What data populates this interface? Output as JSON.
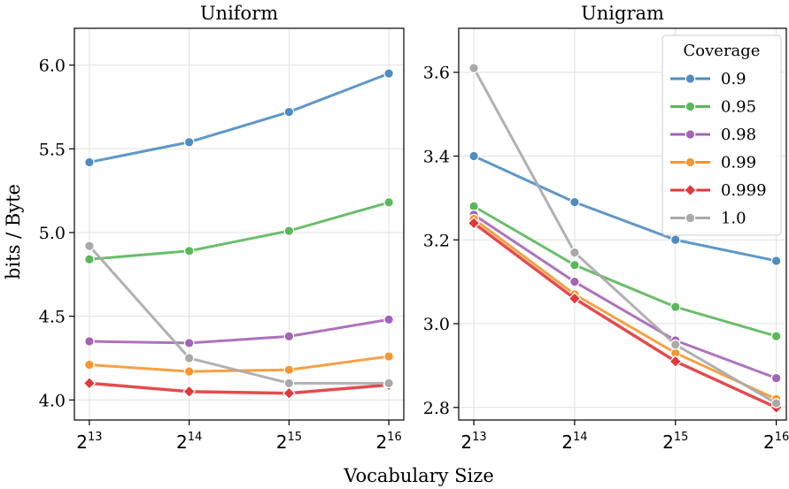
{
  "chart_data": [
    {
      "type": "line",
      "title": "Uniform",
      "xlabel": "Vocabulary Size",
      "ylabel": "bits / Byte",
      "x_log2": [
        13,
        14,
        15,
        16
      ],
      "x_tick_labels": [
        {
          "base": "2",
          "exp": "13"
        },
        {
          "base": "2",
          "exp": "14"
        },
        {
          "base": "2",
          "exp": "15"
        },
        {
          "base": "2",
          "exp": "16"
        }
      ],
      "ylim": [
        3.88,
        6.22
      ],
      "yticks": [
        "4.0",
        "4.5",
        "5.0",
        "5.5",
        "6.0"
      ],
      "series": [
        {
          "name": "0.9",
          "values": [
            5.42,
            5.54,
            5.72,
            5.95
          ]
        },
        {
          "name": "0.95",
          "values": [
            4.84,
            4.89,
            5.01,
            5.18
          ]
        },
        {
          "name": "0.98",
          "values": [
            4.35,
            4.34,
            4.38,
            4.48
          ]
        },
        {
          "name": "0.99",
          "values": [
            4.21,
            4.17,
            4.18,
            4.26
          ]
        },
        {
          "name": "0.999",
          "values": [
            4.1,
            4.05,
            4.04,
            4.09
          ]
        },
        {
          "name": "1.0",
          "values": [
            4.92,
            4.25,
            4.1,
            4.1
          ]
        }
      ]
    },
    {
      "type": "line",
      "title": "Unigram",
      "xlabel": "Vocabulary Size",
      "ylabel": "",
      "x_log2": [
        13,
        14,
        15,
        16
      ],
      "x_tick_labels": [
        {
          "base": "2",
          "exp": "13"
        },
        {
          "base": "2",
          "exp": "14"
        },
        {
          "base": "2",
          "exp": "15"
        },
        {
          "base": "2",
          "exp": "16"
        }
      ],
      "ylim": [
        2.77,
        3.705
      ],
      "yticks": [
        "2.8",
        "3.0",
        "3.2",
        "3.4",
        "3.6"
      ],
      "series": [
        {
          "name": "0.9",
          "values": [
            3.4,
            3.29,
            3.2,
            3.15
          ]
        },
        {
          "name": "0.95",
          "values": [
            3.28,
            3.14,
            3.04,
            2.97
          ]
        },
        {
          "name": "0.98",
          "values": [
            3.26,
            3.1,
            2.96,
            2.87
          ]
        },
        {
          "name": "0.99",
          "values": [
            3.25,
            3.07,
            2.93,
            2.82
          ]
        },
        {
          "name": "0.999",
          "values": [
            3.24,
            3.06,
            2.91,
            2.8
          ]
        },
        {
          "name": "1.0",
          "values": [
            3.61,
            3.17,
            2.95,
            2.81
          ]
        }
      ]
    }
  ],
  "legend": {
    "title": "Coverage",
    "placement": "top-right of Unigram panel",
    "entries": [
      "0.9",
      "0.95",
      "0.98",
      "0.99",
      "0.999",
      "1.0"
    ]
  },
  "series_style": {
    "0.9": {
      "color": "#4e8cc2",
      "marker": "circle"
    },
    "0.95": {
      "color": "#5bb75b",
      "marker": "circle"
    },
    "0.98": {
      "color": "#a464b6",
      "marker": "circle"
    },
    "0.99": {
      "color": "#f7962e",
      "marker": "circle"
    },
    "0.999": {
      "color": "#e0383b",
      "marker": "diamond"
    },
    "1.0": {
      "color": "#a9a9a9",
      "marker": "circle"
    }
  }
}
